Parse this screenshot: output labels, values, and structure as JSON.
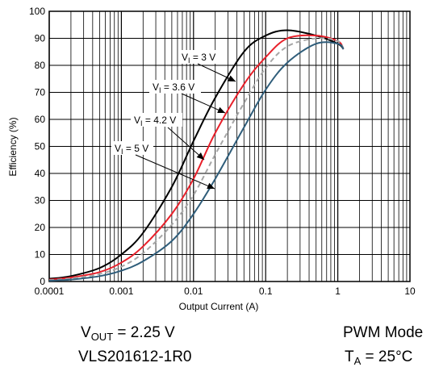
{
  "chart_data": {
    "type": "line",
    "xlabel": "Output Current (A)",
    "ylabel": "Efficiency (%)",
    "xscale": "log",
    "xlim": [
      0.0001,
      10
    ],
    "ylim": [
      0,
      100
    ],
    "grid": true,
    "xticks": [
      {
        "value": 0.0001,
        "label": "0.0001"
      },
      {
        "value": 0.001,
        "label": "0.001"
      },
      {
        "value": 0.01,
        "label": "0.01"
      },
      {
        "value": 0.1,
        "label": "0.1"
      },
      {
        "value": 1,
        "label": "1"
      },
      {
        "value": 10,
        "label": "10"
      }
    ],
    "yticks": [
      0,
      10,
      20,
      30,
      40,
      50,
      60,
      70,
      80,
      90,
      100
    ],
    "series": [
      {
        "name": "VI = 3 V",
        "label_main": "V",
        "label_sub": "I",
        "label_rest": " = 3 V",
        "color": "#000000",
        "dash": "",
        "x": [
          0.0001,
          0.0002,
          0.0005,
          0.001,
          0.002,
          0.005,
          0.01,
          0.02,
          0.05,
          0.1,
          0.2,
          0.5,
          1.0,
          1.2
        ],
        "y": [
          1,
          2,
          5,
          10,
          18,
          35,
          52,
          68,
          85,
          91,
          93,
          91,
          88,
          86
        ]
      },
      {
        "name": "VI = 3.6 V",
        "label_main": "V",
        "label_sub": "I",
        "label_rest": " = 3.6 V",
        "color": "#e8202a",
        "dash": "",
        "x": [
          0.0001,
          0.0002,
          0.0005,
          0.001,
          0.002,
          0.005,
          0.01,
          0.02,
          0.05,
          0.1,
          0.2,
          0.5,
          1.0,
          1.2
        ],
        "y": [
          0.7,
          1.5,
          3.5,
          7,
          13,
          25,
          38,
          55,
          73,
          83,
          90,
          91,
          89,
          86
        ]
      },
      {
        "name": "VI = 4.2 V",
        "label_main": "V",
        "label_sub": "I",
        "label_rest": " = 4.2 V",
        "color": "#a6a6a6",
        "dash": "6,4",
        "x": [
          0.0001,
          0.0002,
          0.0005,
          0.001,
          0.002,
          0.005,
          0.01,
          0.02,
          0.05,
          0.1,
          0.2,
          0.5,
          1.0,
          1.2
        ],
        "y": [
          0.5,
          1.1,
          2.8,
          5.5,
          10.5,
          21,
          32,
          47,
          66,
          79,
          87,
          90,
          89,
          86
        ]
      },
      {
        "name": "VI = 5 V",
        "label_main": "V",
        "label_sub": "I",
        "label_rest": " = 5 V",
        "color": "#2f5d7a",
        "dash": "",
        "x": [
          0.0001,
          0.0002,
          0.0005,
          0.001,
          0.002,
          0.005,
          0.01,
          0.02,
          0.05,
          0.1,
          0.2,
          0.5,
          1.0,
          1.2
        ],
        "y": [
          0.3,
          0.7,
          2,
          4,
          7.5,
          15,
          25,
          38,
          57,
          71,
          81,
          88,
          88,
          86
        ]
      }
    ]
  },
  "notes": {
    "vout_main": "V",
    "vout_sub": "OUT",
    "vout_rest": " = 2.25 V",
    "inductor": "VLS201612-1R0",
    "mode": "PWM Mode",
    "ta_main": "T",
    "ta_sub": "A",
    "ta_rest": " = 25°C"
  }
}
